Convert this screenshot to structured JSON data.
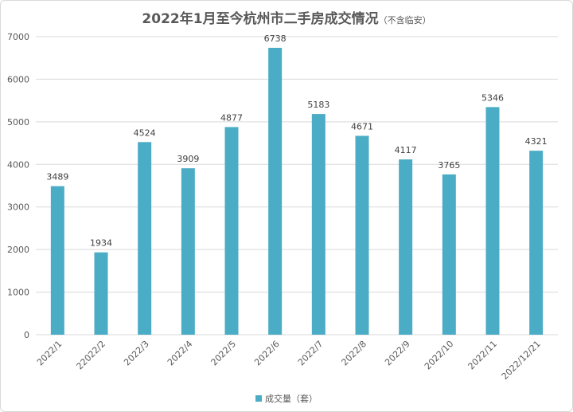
{
  "chart_data": {
    "type": "bar",
    "title": "2022年1月至今杭州市二手房成交情况",
    "subtitle": "（不含临安）",
    "categories": [
      "2022/1",
      "22022/2",
      "2022/3",
      "2022/4",
      "2022/5",
      "2022/6",
      "2022/7",
      "2022/8",
      "2022/9",
      "2022/10",
      "2022/11",
      "2022/12/21"
    ],
    "series": [
      {
        "name": "成交量（套）",
        "values": [
          3489,
          1934,
          4524,
          3909,
          4877,
          6738,
          5183,
          4671,
          4117,
          3765,
          5346,
          4321
        ]
      }
    ],
    "ylim": [
      0,
      7000
    ],
    "yticks": [
      "0",
      "1000",
      "2000",
      "3000",
      "4000",
      "5000",
      "6000",
      "7000"
    ],
    "grid": true,
    "legend_position": "bottom",
    "bar_color": "#4bacc6"
  }
}
